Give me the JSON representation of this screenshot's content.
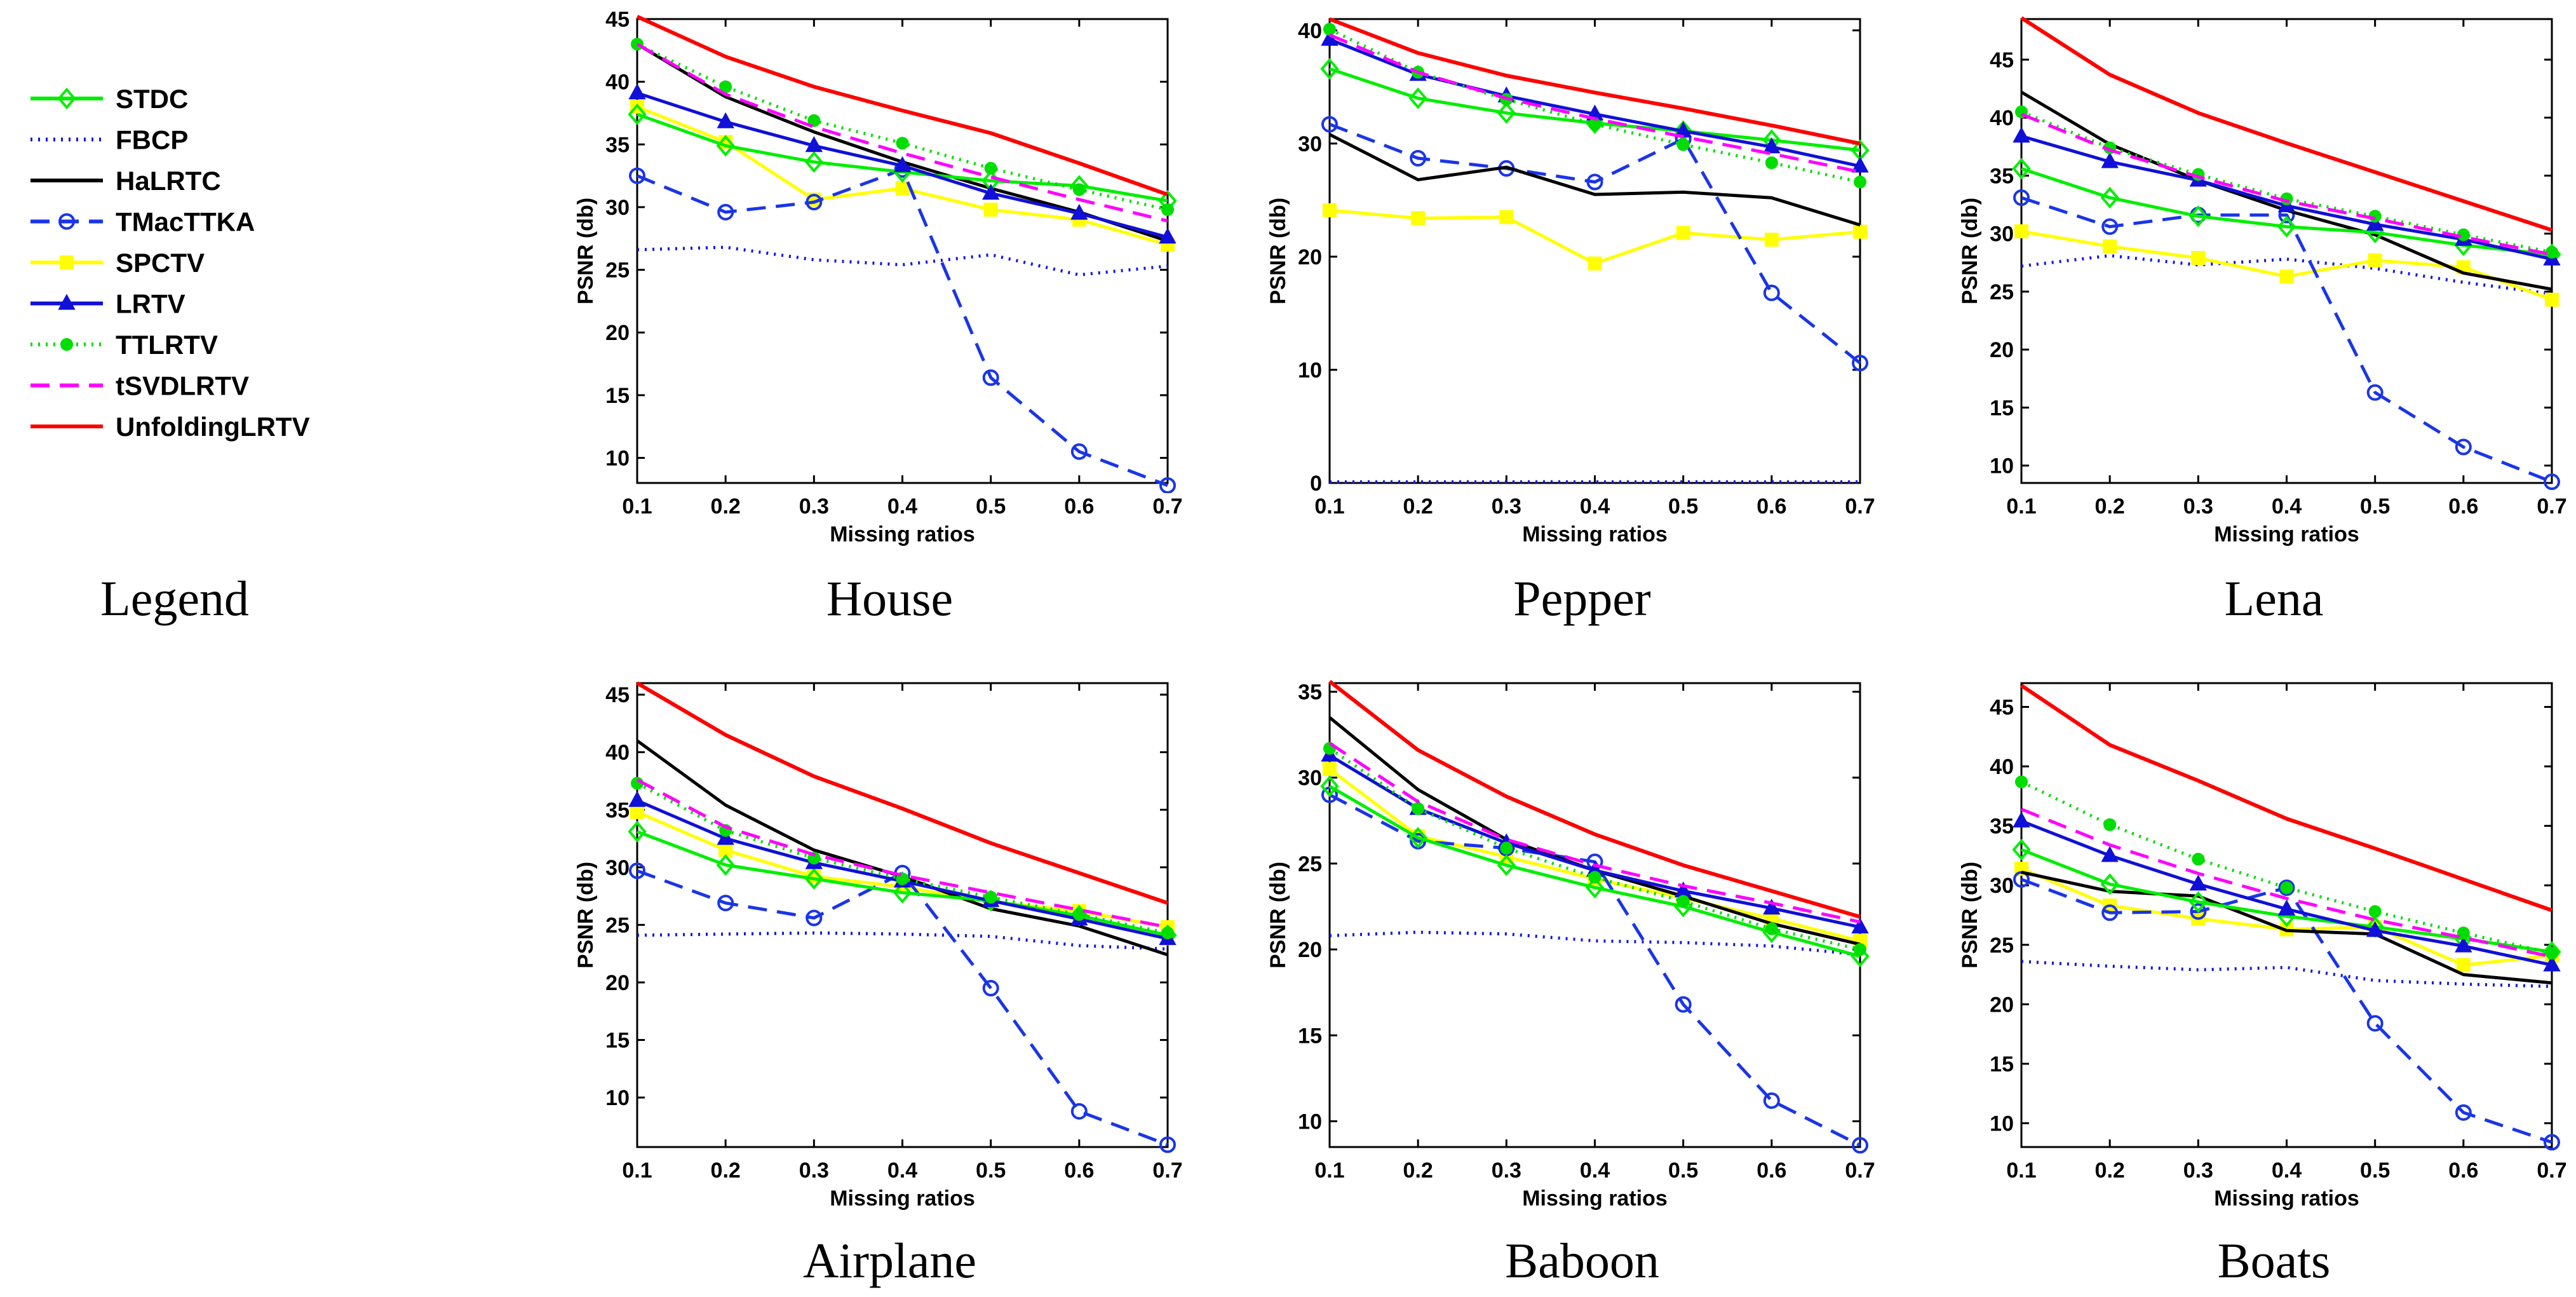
{
  "legend_caption": "Legend",
  "series_styles": [
    {
      "name": "STDC",
      "color": "#00ee00",
      "dash": "solid",
      "marker": "diamond"
    },
    {
      "name": "FBCP",
      "color": "#1515e0",
      "dash": "dotted",
      "marker": "none"
    },
    {
      "name": "HaLRTC",
      "color": "#000000",
      "dash": "solid",
      "marker": "none"
    },
    {
      "name": "TMacTTKA",
      "color": "#1a35e8",
      "dash": "dashed",
      "marker": "circle"
    },
    {
      "name": "SPCTV",
      "color": "#ffff00",
      "dash": "solid",
      "marker": "square"
    },
    {
      "name": "LRTV",
      "color": "#1010d8",
      "dash": "solid",
      "marker": "triangle"
    },
    {
      "name": "TTLRTV",
      "color": "#00dd00",
      "dash": "dotted",
      "marker": "star"
    },
    {
      "name": "tSVDLRTV",
      "color": "#ff00ff",
      "dash": "dashed",
      "marker": "none"
    },
    {
      "name": "UnfoldingLRTV",
      "color": "#ff0000",
      "dash": "solid",
      "marker": "none"
    }
  ],
  "chart_data": [
    {
      "type": "line",
      "title": "House",
      "xlabel": "Missing ratios",
      "ylabel": "PSNR (db)",
      "x": [
        0.1,
        0.2,
        0.3,
        0.4,
        0.5,
        0.6,
        0.7
      ],
      "xticks": [
        "0.1",
        "0.2",
        "0.3",
        "0.4",
        "0.5",
        "0.6",
        "0.7"
      ],
      "ylim": [
        8,
        45
      ],
      "yticks": [
        10,
        15,
        20,
        25,
        30,
        35,
        40,
        45
      ],
      "series": [
        {
          "name": "STDC",
          "values": [
            37.4,
            34.9,
            33.6,
            32.8,
            32.1,
            31.7,
            30.5
          ]
        },
        {
          "name": "FBCP",
          "values": [
            26.6,
            26.8,
            25.8,
            25.4,
            26.2,
            24.6,
            25.3
          ]
        },
        {
          "name": "HaLRTC",
          "values": [
            43.0,
            38.8,
            36.0,
            33.6,
            31.5,
            29.6,
            27.3
          ]
        },
        {
          "name": "TMacTTKA",
          "values": [
            32.5,
            29.6,
            30.4,
            33.0,
            16.4,
            10.5,
            7.8
          ]
        },
        {
          "name": "SPCTV",
          "values": [
            38.0,
            35.2,
            30.6,
            31.5,
            29.8,
            29.0,
            27.0
          ]
        },
        {
          "name": "LRTV",
          "values": [
            39.1,
            36.8,
            34.9,
            33.3,
            31.1,
            29.5,
            27.6
          ]
        },
        {
          "name": "TTLRTV",
          "values": [
            43.0,
            39.6,
            36.9,
            35.1,
            33.1,
            31.4,
            29.8
          ]
        },
        {
          "name": "tSVDLRTV",
          "values": [
            43.0,
            39.0,
            36.4,
            34.3,
            32.4,
            30.6,
            28.9
          ]
        },
        {
          "name": "UnfoldingLRTV",
          "values": [
            45.2,
            42.0,
            39.6,
            37.7,
            35.9,
            33.5,
            31.0
          ]
        }
      ]
    },
    {
      "type": "line",
      "title": "Pepper",
      "xlabel": "Missing ratios",
      "ylabel": "PSNR (db)",
      "x": [
        0.1,
        0.2,
        0.3,
        0.4,
        0.5,
        0.6,
        0.7
      ],
      "xticks": [
        "0.1",
        "0.2",
        "0.3",
        "0.4",
        "0.5",
        "0.6",
        "0.7"
      ],
      "ylim": [
        0,
        41
      ],
      "yticks": [
        0,
        10,
        20,
        30,
        40
      ],
      "series": [
        {
          "name": "STDC",
          "values": [
            36.6,
            34.0,
            32.7,
            31.8,
            31.1,
            30.3,
            29.4
          ]
        },
        {
          "name": "FBCP",
          "values": [
            0.1,
            0.1,
            0.1,
            0.1,
            0.1,
            0.1,
            0.1
          ]
        },
        {
          "name": "HaLRTC",
          "values": [
            30.8,
            26.8,
            27.9,
            25.5,
            25.7,
            25.2,
            22.8
          ]
        },
        {
          "name": "TMacTTKA",
          "values": [
            31.7,
            28.7,
            27.8,
            26.6,
            30.4,
            16.8,
            10.6
          ]
        },
        {
          "name": "SPCTV",
          "values": [
            24.1,
            23.4,
            23.5,
            19.4,
            22.1,
            21.5,
            22.2
          ]
        },
        {
          "name": "LRTV",
          "values": [
            39.2,
            36.1,
            34.2,
            32.6,
            31.1,
            29.7,
            28.0
          ]
        },
        {
          "name": "TTLRTV",
          "values": [
            40.1,
            36.3,
            33.9,
            31.7,
            29.9,
            28.3,
            26.6
          ]
        },
        {
          "name": "tSVDLRTV",
          "values": [
            39.6,
            36.3,
            34.0,
            32.2,
            30.6,
            29.1,
            27.5
          ]
        },
        {
          "name": "UnfoldingLRTV",
          "values": [
            41.0,
            38.0,
            36.0,
            34.5,
            33.1,
            31.6,
            30.0
          ]
        }
      ]
    },
    {
      "type": "line",
      "title": "Lena",
      "xlabel": "Missing ratios",
      "ylabel": "PSNR (db)",
      "x": [
        0.1,
        0.2,
        0.3,
        0.4,
        0.5,
        0.6,
        0.7
      ],
      "xticks": [
        "0.1",
        "0.2",
        "0.3",
        "0.4",
        "0.5",
        "0.6",
        "0.7"
      ],
      "ylim": [
        8.5,
        48.5
      ],
      "yticks": [
        10,
        15,
        20,
        25,
        30,
        35,
        40,
        45
      ],
      "series": [
        {
          "name": "STDC",
          "values": [
            35.6,
            33.1,
            31.5,
            30.6,
            30.1,
            29.0,
            28.2
          ]
        },
        {
          "name": "FBCP",
          "values": [
            27.2,
            28.1,
            27.3,
            27.8,
            27.0,
            25.8,
            24.8
          ]
        },
        {
          "name": "HaLRTC",
          "values": [
            42.2,
            37.7,
            34.6,
            32.0,
            29.9,
            26.6,
            25.2
          ]
        },
        {
          "name": "TMacTTKA",
          "values": [
            33.1,
            30.6,
            31.6,
            31.6,
            16.3,
            11.6,
            8.6
          ]
        },
        {
          "name": "SPCTV",
          "values": [
            30.2,
            28.9,
            27.9,
            26.3,
            27.7,
            27.1,
            24.3
          ]
        },
        {
          "name": "LRTV",
          "values": [
            38.4,
            36.2,
            34.6,
            32.4,
            30.8,
            29.5,
            27.8
          ]
        },
        {
          "name": "TTLRTV",
          "values": [
            40.5,
            37.4,
            35.1,
            33.0,
            31.5,
            29.9,
            28.4
          ]
        },
        {
          "name": "tSVDLRTV",
          "values": [
            40.3,
            37.2,
            34.9,
            32.8,
            31.3,
            29.7,
            28.2
          ]
        },
        {
          "name": "UnfoldingLRTV",
          "values": [
            48.6,
            43.7,
            40.4,
            37.8,
            35.3,
            32.8,
            30.3
          ]
        }
      ]
    },
    {
      "type": "line",
      "title": "Airplane",
      "xlabel": "Missing ratios",
      "ylabel": "PSNR (db)",
      "x": [
        0.1,
        0.2,
        0.3,
        0.4,
        0.5,
        0.6,
        0.7
      ],
      "xticks": [
        "0.1",
        "0.2",
        "0.3",
        "0.4",
        "0.5",
        "0.6",
        "0.7"
      ],
      "ylim": [
        5.7,
        46
      ],
      "yticks": [
        10,
        15,
        20,
        25,
        30,
        35,
        40,
        45
      ],
      "series": [
        {
          "name": "STDC",
          "values": [
            33.1,
            30.2,
            29.0,
            27.8,
            27.1,
            25.8,
            24.1
          ]
        },
        {
          "name": "FBCP",
          "values": [
            24.1,
            24.2,
            24.3,
            24.2,
            24.0,
            23.2,
            22.9
          ]
        },
        {
          "name": "HaLRTC",
          "values": [
            41.0,
            35.4,
            31.5,
            29.2,
            26.4,
            24.9,
            22.4
          ]
        },
        {
          "name": "TMacTTKA",
          "values": [
            29.7,
            26.9,
            25.6,
            29.5,
            19.5,
            8.8,
            5.9
          ]
        },
        {
          "name": "SPCTV",
          "values": [
            34.8,
            31.5,
            29.2,
            28.3,
            27.0,
            26.2,
            24.8
          ]
        },
        {
          "name": "LRTV",
          "values": [
            35.8,
            32.5,
            30.4,
            28.8,
            27.1,
            25.5,
            23.8
          ]
        },
        {
          "name": "TTLRTV",
          "values": [
            37.3,
            33.2,
            30.8,
            29.0,
            27.4,
            25.9,
            24.3
          ]
        },
        {
          "name": "tSVDLRTV",
          "values": [
            37.6,
            33.5,
            31.1,
            29.3,
            27.8,
            26.3,
            24.8
          ]
        },
        {
          "name": "UnfoldingLRTV",
          "values": [
            46.0,
            41.5,
            37.9,
            35.1,
            32.1,
            29.5,
            26.9
          ]
        }
      ]
    },
    {
      "type": "line",
      "title": "Baboon",
      "xlabel": "Missing ratios",
      "ylabel": "PSNR (db)",
      "x": [
        0.1,
        0.2,
        0.3,
        0.4,
        0.5,
        0.6,
        0.7
      ],
      "xticks": [
        "0.1",
        "0.2",
        "0.3",
        "0.4",
        "0.5",
        "0.6",
        "0.7"
      ],
      "ylim": [
        8.5,
        35.5
      ],
      "yticks": [
        10,
        15,
        20,
        25,
        30,
        35
      ],
      "series": [
        {
          "name": "STDC",
          "values": [
            29.5,
            26.5,
            24.9,
            23.6,
            22.5,
            21.0,
            19.6
          ]
        },
        {
          "name": "FBCP",
          "values": [
            20.8,
            21.0,
            20.9,
            20.5,
            20.4,
            20.2,
            19.7
          ]
        },
        {
          "name": "HaLRTC",
          "values": [
            33.5,
            29.3,
            26.4,
            24.6,
            23.1,
            21.5,
            20.3
          ]
        },
        {
          "name": "TMacTTKA",
          "values": [
            29.0,
            26.3,
            25.9,
            25.1,
            16.8,
            11.2,
            8.6
          ]
        },
        {
          "name": "SPCTV",
          "values": [
            30.5,
            26.6,
            25.4,
            24.1,
            23.0,
            21.8,
            20.5
          ]
        },
        {
          "name": "LRTV",
          "values": [
            31.3,
            28.2,
            26.2,
            24.6,
            23.4,
            22.4,
            21.3
          ]
        },
        {
          "name": "TTLRTV",
          "values": [
            31.7,
            28.2,
            25.9,
            24.2,
            22.8,
            21.2,
            20.0
          ]
        },
        {
          "name": "tSVDLRTV",
          "values": [
            32.0,
            28.6,
            26.4,
            24.9,
            23.7,
            22.7,
            21.6
          ]
        },
        {
          "name": "UnfoldingLRTV",
          "values": [
            35.6,
            31.6,
            28.9,
            26.7,
            24.9,
            23.4,
            21.9
          ]
        }
      ]
    },
    {
      "type": "line",
      "title": "Boats",
      "xlabel": "Missing ratios",
      "ylabel": "PSNR (db)",
      "x": [
        0.1,
        0.2,
        0.3,
        0.4,
        0.5,
        0.6,
        0.7
      ],
      "xticks": [
        "0.1",
        "0.2",
        "0.3",
        "0.4",
        "0.5",
        "0.6",
        "0.7"
      ],
      "ylim": [
        8,
        47
      ],
      "yticks": [
        10,
        15,
        20,
        25,
        30,
        35,
        40,
        45
      ],
      "series": [
        {
          "name": "STDC",
          "values": [
            33.0,
            30.1,
            28.6,
            27.4,
            26.5,
            25.5,
            24.4
          ]
        },
        {
          "name": "FBCP",
          "values": [
            23.6,
            23.2,
            22.9,
            23.1,
            22.0,
            21.7,
            21.5
          ]
        },
        {
          "name": "HaLRTC",
          "values": [
            31.1,
            29.5,
            29.1,
            26.2,
            25.9,
            22.5,
            21.8
          ]
        },
        {
          "name": "TMacTTKA",
          "values": [
            30.5,
            27.7,
            27.8,
            29.8,
            18.4,
            10.9,
            8.4
          ]
        },
        {
          "name": "SPCTV",
          "values": [
            31.4,
            28.3,
            27.2,
            26.3,
            26.5,
            23.3,
            24.1
          ]
        },
        {
          "name": "LRTV",
          "values": [
            35.4,
            32.5,
            30.1,
            28.0,
            26.2,
            24.9,
            23.3
          ]
        },
        {
          "name": "TTLRTV",
          "values": [
            38.7,
            35.1,
            32.2,
            29.8,
            27.8,
            26.0,
            24.3
          ]
        },
        {
          "name": "tSVDLRTV",
          "values": [
            36.4,
            33.4,
            31.0,
            28.9,
            27.1,
            25.6,
            24.0
          ]
        },
        {
          "name": "UnfoldingLRTV",
          "values": [
            46.8,
            41.8,
            38.8,
            35.6,
            33.1,
            30.5,
            27.9
          ]
        }
      ]
    }
  ]
}
